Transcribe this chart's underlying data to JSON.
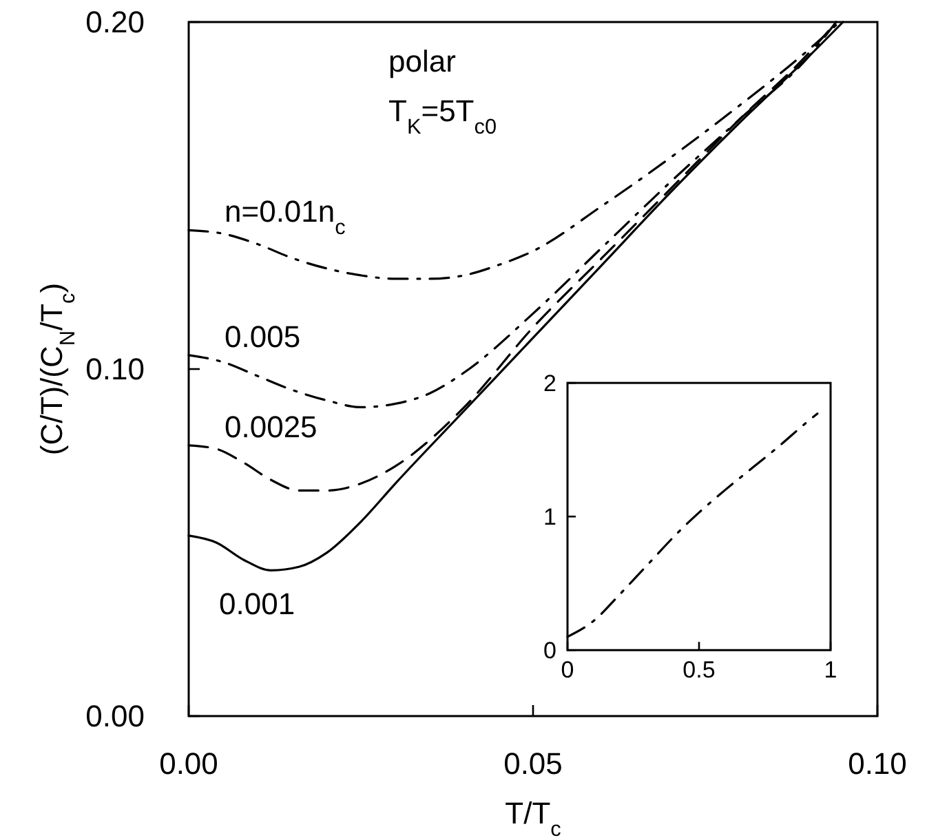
{
  "chart_data": [
    {
      "type": "line",
      "xlabel": "T/T$_{c}$",
      "ylabel": "(C/T)/(C$_{N}$/T$_{c}$)",
      "xlim": [
        0,
        0.1
      ],
      "ylim": [
        0,
        0.2
      ],
      "xticks": [
        {
          "value": 0,
          "label": "0.00"
        },
        {
          "value": 0.05,
          "label": "0.05"
        },
        {
          "value": 0.1,
          "label": "0.10"
        }
      ],
      "yticks": [
        {
          "value": 0,
          "label": "0.00"
        },
        {
          "value": 0.1,
          "label": "0.10"
        },
        {
          "value": 0.2,
          "label": "0.20"
        }
      ],
      "grid": false,
      "annotations": [
        "polar",
        "T$_{K}$=5T$_{c0}$"
      ],
      "series": [
        {
          "name": "n=0.01n$_{c}$",
          "color": "#000000",
          "line_style": "dashdot",
          "x": [
            0,
            0.005,
            0.01,
            0.015,
            0.02,
            0.025,
            0.03,
            0.035,
            0.04,
            0.045,
            0.05,
            0.06,
            0.07,
            0.08,
            0.09,
            0.0945
          ],
          "values": [
            0.14,
            0.139,
            0.136,
            0.132,
            0.129,
            0.127,
            0.126,
            0.126,
            0.127,
            0.13,
            0.134,
            0.147,
            0.161,
            0.176,
            0.192,
            0.2
          ]
        },
        {
          "name": "0.005",
          "color": "#000000",
          "line_style": "dashdot",
          "x": [
            0,
            0.005,
            0.01,
            0.015,
            0.02,
            0.025,
            0.03,
            0.035,
            0.04,
            0.05,
            0.06,
            0.07,
            0.08,
            0.09,
            0.094
          ],
          "values": [
            0.104,
            0.102,
            0.098,
            0.094,
            0.091,
            0.089,
            0.09,
            0.093,
            0.099,
            0.116,
            0.135,
            0.154,
            0.172,
            0.19,
            0.2
          ]
        },
        {
          "name": "0.0025",
          "color": "#000000",
          "line_style": "dashed",
          "x": [
            0,
            0.004,
            0.008,
            0.012,
            0.016,
            0.02,
            0.025,
            0.03,
            0.04,
            0.05,
            0.06,
            0.07,
            0.08,
            0.09,
            0.094
          ],
          "values": [
            0.078,
            0.077,
            0.073,
            0.068,
            0.065,
            0.065,
            0.067,
            0.072,
            0.089,
            0.112,
            0.132,
            0.152,
            0.172,
            0.191,
            0.2
          ]
        },
        {
          "name": "0.001",
          "color": "#000000",
          "line_style": "solid",
          "x": [
            0,
            0.004,
            0.008,
            0.012,
            0.016,
            0.02,
            0.025,
            0.03,
            0.04,
            0.05,
            0.06,
            0.07,
            0.08,
            0.09,
            0.095
          ],
          "values": [
            0.052,
            0.05,
            0.045,
            0.042,
            0.043,
            0.047,
            0.056,
            0.067,
            0.088,
            0.109,
            0.13,
            0.151,
            0.171,
            0.19,
            0.2
          ]
        }
      ]
    },
    {
      "type": "line",
      "xlim": [
        0,
        1
      ],
      "ylim": [
        0,
        2
      ],
      "xticks": [
        {
          "value": 0,
          "label": "0"
        },
        {
          "value": 0.5,
          "label": "0.5"
        },
        {
          "value": 1,
          "label": "1"
        }
      ],
      "yticks": [
        {
          "value": 0,
          "label": "0"
        },
        {
          "value": 1,
          "label": "1"
        },
        {
          "value": 2,
          "label": "2"
        }
      ],
      "grid": false,
      "series": [
        {
          "color": "#000000",
          "line_style": "dashdot",
          "x": [
            0,
            0.1,
            0.2,
            0.3,
            0.43,
            0.5,
            0.6,
            0.7,
            0.8,
            0.906,
            0.95
          ],
          "values": [
            0.1,
            0.22,
            0.42,
            0.63,
            0.9,
            1.03,
            1.2,
            1.36,
            1.52,
            1.7,
            1.77
          ]
        }
      ]
    }
  ]
}
